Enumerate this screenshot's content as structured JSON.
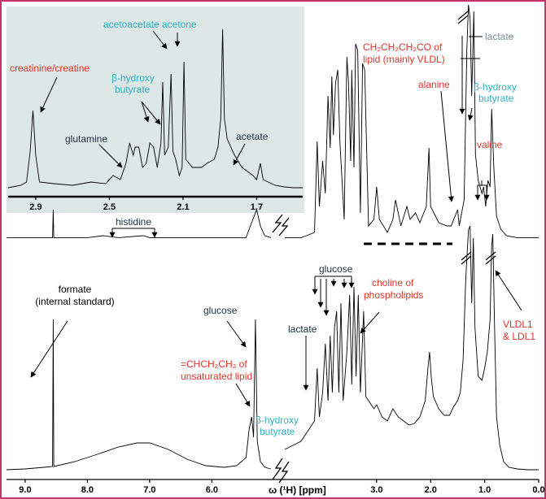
{
  "colors": {
    "frame": "#c8336a",
    "red_label": "#e8332a",
    "teal_label": "#2fb3c6",
    "gray_label": "#7a8a96",
    "dark_label": "#1b2f3f",
    "inset_background": "#dde8e6",
    "trace": "#000000"
  },
  "chart_data": [
    {
      "panel": "top",
      "type": "line",
      "xlim_ppm": [
        9.3,
        0.0
      ],
      "trace_points": [
        [
          9.3,
          0.02
        ],
        [
          9.0,
          0.02
        ],
        [
          8.7,
          0.02
        ],
        [
          8.56,
          0.02
        ],
        [
          8.55,
          0.45
        ],
        [
          8.54,
          0.02
        ],
        [
          8.3,
          0.02
        ],
        [
          8.0,
          0.02
        ],
        [
          7.75,
          0.05
        ],
        [
          7.5,
          0.02
        ],
        [
          7.1,
          0.05
        ],
        [
          7.0,
          0.02
        ],
        [
          6.5,
          0.02
        ],
        [
          6.0,
          0.02
        ],
        [
          5.6,
          0.02
        ],
        [
          5.45,
          0.02
        ],
        [
          5.4,
          0.15
        ],
        [
          5.28,
          0.45
        ],
        [
          5.22,
          0.2
        ],
        [
          5.15,
          0.05
        ],
        [
          5.05,
          0.02
        ],
        [
          4.7,
          0.02
        ],
        [
          4.4,
          0.02
        ],
        [
          4.3,
          0.05
        ],
        [
          4.15,
          0.1
        ],
        [
          4.1,
          1.5
        ],
        [
          4.06,
          0.5
        ],
        [
          4.0,
          1.2
        ],
        [
          3.95,
          0.7
        ],
        [
          3.9,
          2.2
        ],
        [
          3.86,
          1.4
        ],
        [
          3.83,
          2.5
        ],
        [
          3.8,
          1.6
        ],
        [
          3.76,
          2.4
        ],
        [
          3.72,
          2.6
        ],
        [
          3.68,
          1.5
        ],
        [
          3.6,
          0.3
        ],
        [
          3.55,
          2.8
        ],
        [
          3.52,
          2.4
        ],
        [
          3.48,
          1.2
        ],
        [
          3.46,
          2.6
        ],
        [
          3.42,
          1.1
        ],
        [
          3.39,
          3.0
        ],
        [
          3.35,
          2.9
        ],
        [
          3.3,
          0.4
        ],
        [
          3.26,
          2.7
        ],
        [
          3.22,
          2.6
        ],
        [
          3.15,
          0.2
        ],
        [
          3.05,
          0.3
        ],
        [
          3.0,
          0.8
        ],
        [
          2.95,
          0.3
        ],
        [
          2.8,
          0.1
        ],
        [
          2.7,
          0.3
        ],
        [
          2.65,
          0.6
        ],
        [
          2.55,
          0.2
        ],
        [
          2.44,
          0.5
        ],
        [
          2.38,
          0.3
        ],
        [
          2.28,
          0.4
        ],
        [
          2.2,
          0.25
        ],
        [
          2.08,
          0.5
        ],
        [
          2.03,
          1.4
        ],
        [
          2.0,
          0.5
        ],
        [
          1.85,
          0.25
        ],
        [
          1.7,
          0.2
        ],
        [
          1.62,
          0.2
        ],
        [
          1.5,
          0.45
        ],
        [
          1.47,
          0.2
        ],
        [
          1.38,
          0.6
        ],
        [
          1.33,
          2.9
        ],
        [
          1.3,
          3.6
        ],
        [
          1.27,
          3.4
        ],
        [
          1.24,
          2.2
        ],
        [
          1.2,
          3.5
        ],
        [
          1.17,
          1.3
        ],
        [
          1.12,
          0.9
        ],
        [
          1.05,
          0.7
        ],
        [
          1.02,
          0.8
        ],
        [
          0.98,
          0.5
        ],
        [
          0.94,
          0.9
        ],
        [
          0.9,
          0.8
        ],
        [
          0.87,
          2.0
        ],
        [
          0.83,
          1.1
        ],
        [
          0.78,
          0.35
        ],
        [
          0.7,
          0.15
        ],
        [
          0.6,
          0.05
        ],
        [
          0.4,
          0.02
        ],
        [
          0.2,
          0.02
        ],
        [
          0.0,
          0.02
        ]
      ],
      "labels": {
        "histidine": "histidine",
        "lactate": "lactate",
        "lipid_ch2": "CH₂CH₂CH₂CO of",
        "lipid_ch2_line2": "lipid (mainly VLDL)",
        "alanine": "alanine",
        "bhb_line1": "β-hydroxy",
        "bhb_line2": "butyrate",
        "valine": "valine"
      }
    },
    {
      "panel": "inset",
      "type": "line",
      "xlim_ppm": [
        3.05,
        1.45
      ],
      "ticks": [
        2.9,
        2.5,
        2.1,
        1.7
      ],
      "tick_labels": [
        "2.9",
        "2.5",
        "2.1",
        "1.7"
      ],
      "trace_points": [
        [
          3.05,
          0.05
        ],
        [
          2.98,
          0.08
        ],
        [
          2.95,
          0.12
        ],
        [
          2.93,
          0.5
        ],
        [
          2.915,
          1.0
        ],
        [
          2.9,
          0.45
        ],
        [
          2.88,
          0.12
        ],
        [
          2.8,
          0.1
        ],
        [
          2.7,
          0.08
        ],
        [
          2.6,
          0.12
        ],
        [
          2.52,
          0.1
        ],
        [
          2.48,
          0.2
        ],
        [
          2.44,
          0.15
        ],
        [
          2.41,
          0.35
        ],
        [
          2.39,
          0.6
        ],
        [
          2.37,
          0.45
        ],
        [
          2.36,
          0.55
        ],
        [
          2.34,
          0.55
        ],
        [
          2.32,
          0.3
        ],
        [
          2.3,
          0.35
        ],
        [
          2.28,
          0.6
        ],
        [
          2.26,
          0.55
        ],
        [
          2.24,
          0.3
        ],
        [
          2.22,
          0.6
        ],
        [
          2.21,
          1.35
        ],
        [
          2.2,
          0.45
        ],
        [
          2.18,
          0.55
        ],
        [
          2.165,
          1.45
        ],
        [
          2.155,
          0.5
        ],
        [
          2.14,
          0.4
        ],
        [
          2.12,
          0.2
        ],
        [
          2.105,
          0.3
        ],
        [
          2.095,
          1.6
        ],
        [
          2.085,
          0.4
        ],
        [
          2.05,
          0.3
        ],
        [
          2.0,
          0.3
        ],
        [
          1.97,
          0.35
        ],
        [
          1.93,
          0.4
        ],
        [
          1.91,
          0.55
        ],
        [
          1.895,
          0.9
        ],
        [
          1.885,
          2.0
        ],
        [
          1.875,
          0.9
        ],
        [
          1.86,
          0.65
        ],
        [
          1.82,
          0.45
        ],
        [
          1.78,
          0.3
        ],
        [
          1.72,
          0.2
        ],
        [
          1.7,
          0.15
        ],
        [
          1.68,
          0.35
        ],
        [
          1.665,
          0.15
        ],
        [
          1.6,
          0.08
        ],
        [
          1.55,
          0.06
        ],
        [
          1.5,
          0.05
        ],
        [
          1.45,
          0.05
        ]
      ],
      "labels": {
        "creatinine": "creatinine/creatine",
        "glutamine": "glutamine",
        "bhb_line1": "β-hydroxy",
        "bhb_line2": "butyrate",
        "acetoacetate": "acetoacetate",
        "acetone": "acetone",
        "acetate": "acetate"
      }
    },
    {
      "panel": "bottom",
      "type": "line",
      "xlim_ppm": [
        9.3,
        0.0
      ],
      "ticks": [
        9.0,
        8.0,
        7.0,
        6.0,
        3.0,
        2.0,
        1.0,
        0.0
      ],
      "tick_labels": [
        "9.0",
        "8.0",
        "7.0",
        "6.0",
        "3.0",
        "2.0",
        "1.0",
        "0.0"
      ],
      "xlabel": "ω (¹H) [ppm]",
      "trace_points": [
        [
          9.3,
          0.05
        ],
        [
          9.0,
          0.06
        ],
        [
          8.7,
          0.08
        ],
        [
          8.56,
          0.09
        ],
        [
          8.55,
          1.9
        ],
        [
          8.54,
          0.09
        ],
        [
          8.2,
          0.15
        ],
        [
          7.8,
          0.25
        ],
        [
          7.5,
          0.33
        ],
        [
          7.2,
          0.38
        ],
        [
          7.0,
          0.38
        ],
        [
          6.7,
          0.3
        ],
        [
          6.4,
          0.18
        ],
        [
          6.1,
          0.1
        ],
        [
          5.8,
          0.08
        ],
        [
          5.6,
          0.1
        ],
        [
          5.45,
          0.2
        ],
        [
          5.4,
          0.55
        ],
        [
          5.36,
          0.7
        ],
        [
          5.33,
          0.45
        ],
        [
          5.3,
          1.9
        ],
        [
          5.27,
          0.4
        ],
        [
          5.22,
          0.15
        ],
        [
          5.15,
          0.08
        ],
        [
          5.05,
          0.06
        ],
        [
          4.7,
          0.3
        ],
        [
          4.4,
          0.4
        ],
        [
          4.25,
          0.55
        ],
        [
          4.15,
          0.65
        ],
        [
          4.1,
          1.3
        ],
        [
          4.06,
          0.7
        ],
        [
          4.0,
          1.0
        ],
        [
          3.95,
          1.6
        ],
        [
          3.9,
          0.9
        ],
        [
          3.86,
          1.7
        ],
        [
          3.82,
          1.0
        ],
        [
          3.78,
          1.8
        ],
        [
          3.74,
          2.0
        ],
        [
          3.7,
          1.0
        ],
        [
          3.66,
          2.1
        ],
        [
          3.62,
          0.9
        ],
        [
          3.55,
          1.5
        ],
        [
          3.5,
          2.2
        ],
        [
          3.46,
          1.1
        ],
        [
          3.42,
          2.3
        ],
        [
          3.38,
          1.2
        ],
        [
          3.34,
          2.2
        ],
        [
          3.3,
          1.0
        ],
        [
          3.24,
          2.0
        ],
        [
          3.2,
          0.95
        ],
        [
          3.15,
          0.9
        ],
        [
          3.1,
          0.85
        ],
        [
          3.05,
          0.8
        ],
        [
          3.0,
          0.85
        ],
        [
          2.9,
          0.7
        ],
        [
          2.8,
          0.65
        ],
        [
          2.7,
          0.8
        ],
        [
          2.6,
          0.7
        ],
        [
          2.5,
          0.65
        ],
        [
          2.4,
          0.6
        ],
        [
          2.3,
          0.62
        ],
        [
          2.2,
          0.7
        ],
        [
          2.1,
          0.9
        ],
        [
          2.05,
          1.3
        ],
        [
          2.02,
          1.5
        ],
        [
          1.99,
          1.2
        ],
        [
          1.95,
          0.95
        ],
        [
          1.85,
          0.8
        ],
        [
          1.75,
          0.72
        ],
        [
          1.65,
          0.72
        ],
        [
          1.58,
          0.82
        ],
        [
          1.5,
          0.9
        ],
        [
          1.45,
          1.0
        ],
        [
          1.4,
          1.4
        ],
        [
          1.35,
          2.4
        ],
        [
          1.3,
          3.0
        ],
        [
          1.27,
          3.05
        ],
        [
          1.24,
          2.1
        ],
        [
          1.21,
          2.9
        ],
        [
          1.18,
          1.8
        ],
        [
          1.12,
          1.2
        ],
        [
          1.05,
          1.15
        ],
        [
          1.0,
          1.3
        ],
        [
          0.95,
          1.5
        ],
        [
          0.9,
          1.9
        ],
        [
          0.87,
          2.8
        ],
        [
          0.85,
          2.95
        ],
        [
          0.82,
          1.9
        ],
        [
          0.78,
          0.7
        ],
        [
          0.72,
          0.35
        ],
        [
          0.65,
          0.15
        ],
        [
          0.55,
          0.08
        ],
        [
          0.4,
          0.06
        ],
        [
          0.2,
          0.05
        ],
        [
          0.0,
          0.05
        ]
      ],
      "labels": {
        "formate_line1": "formate",
        "formate_line2": "(internal standard)",
        "glucose_left": "glucose",
        "glucose_top": "glucose",
        "lactate": "lactate",
        "choline_line1": "choline of",
        "choline_line2": "phospholipids",
        "unsat_line1": "=CHCH₂CH₂ of",
        "unsat_line2": "unsaturated lipid",
        "bhb_line1": "β-hydroxy",
        "bhb_line2": "butyrate",
        "vldl_line1": "VLDL1",
        "vldl_line2": "& LDL1"
      }
    }
  ]
}
